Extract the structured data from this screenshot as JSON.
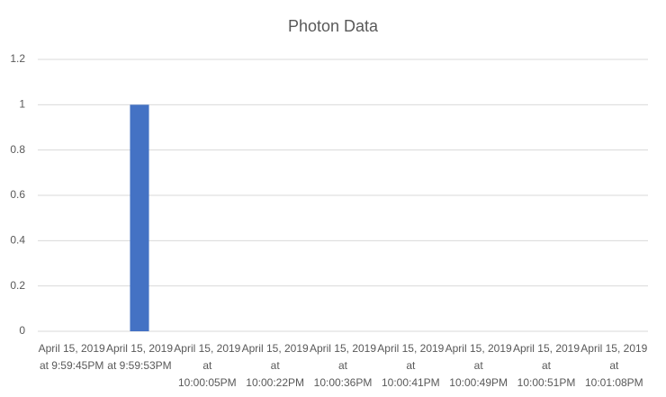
{
  "chart_data": {
    "type": "bar",
    "title": "Photon Data",
    "categories": [
      "April 15, 2019 at 9:59:45PM",
      "April 15, 2019 at 9:59:53PM",
      "April 15, 2019 at 10:00:05PM",
      "April 15, 2019 at 10:00:22PM",
      "April 15, 2019 at 10:00:36PM",
      "April 15, 2019 at 10:00:41PM",
      "April 15, 2019 at 10:00:49PM",
      "April 15, 2019 at 10:00:51PM",
      "April 15, 2019 at 10:01:08PM"
    ],
    "values": [
      0,
      1,
      0,
      0,
      0,
      0,
      0,
      0,
      0
    ],
    "color": "#4472c4",
    "ylim": [
      0,
      1.2
    ],
    "yticks": [
      0,
      0.2,
      0.4,
      0.6,
      0.8,
      1,
      1.2
    ],
    "grid": true
  }
}
